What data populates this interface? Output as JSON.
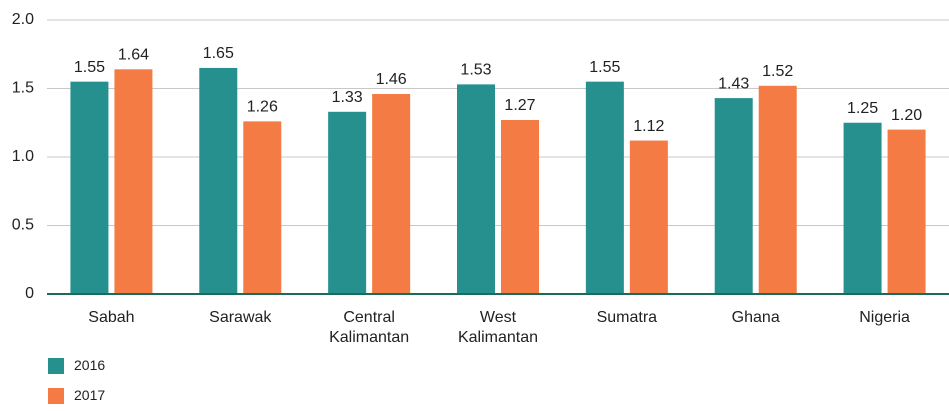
{
  "chart_data": {
    "type": "bar",
    "categories": [
      "Sabah",
      "Sarawak",
      "Central Kalimantan",
      "West Kalimantan",
      "Sumatra",
      "Ghana",
      "Nigeria"
    ],
    "series": [
      {
        "name": "2016",
        "color": "#26908f",
        "values": [
          1.55,
          1.65,
          1.33,
          1.53,
          1.55,
          1.43,
          1.25
        ],
        "value_labels": [
          "1.55",
          "1.65",
          "1.33",
          "1.53",
          "1.55",
          "1.43",
          "1.25"
        ]
      },
      {
        "name": "2017",
        "color": "#f47c44",
        "values": [
          1.64,
          1.26,
          1.46,
          1.27,
          1.12,
          1.52,
          1.2
        ],
        "value_labels": [
          "1.64",
          "1.26",
          "1.46",
          "1.27",
          "1.12",
          "1.52",
          "1.20"
        ]
      }
    ],
    "ylim": [
      0,
      2
    ],
    "yticks": [
      0,
      {
        "value": 0.5,
        "label": "0.5"
      },
      {
        "value": 1,
        "label": "1.0"
      },
      {
        "value": 1.5,
        "label": "1.5"
      },
      {
        "value": 2,
        "label": "2.0"
      }
    ],
    "grid": true
  }
}
